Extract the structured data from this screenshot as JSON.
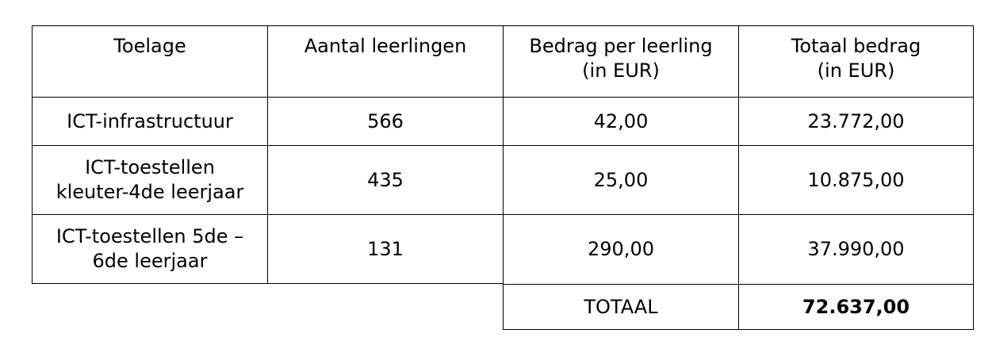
{
  "table": {
    "headers": [
      "Toelage",
      "Aantal leerlingen",
      "Bedrag per leerling\n(in EUR)",
      "Totaal bedrag\n(in EUR)"
    ],
    "rows": [
      {
        "toelage": "ICT-infrastructuur",
        "aantal": "566",
        "bedrag_per_leerling": "42,00",
        "totaal": "23.772,00"
      },
      {
        "toelage": "ICT-toestellen\nkleuter-4de leerjaar",
        "aantal": "435",
        "bedrag_per_leerling": "25,00",
        "totaal": "10.875,00"
      },
      {
        "toelage": "ICT-toestellen 5de –\n6de leerjaar",
        "aantal": "131",
        "bedrag_per_leerling": "290,00",
        "totaal": "37.990,00"
      }
    ],
    "total": {
      "label": "TOTAAL",
      "value": "72.637,00"
    }
  }
}
